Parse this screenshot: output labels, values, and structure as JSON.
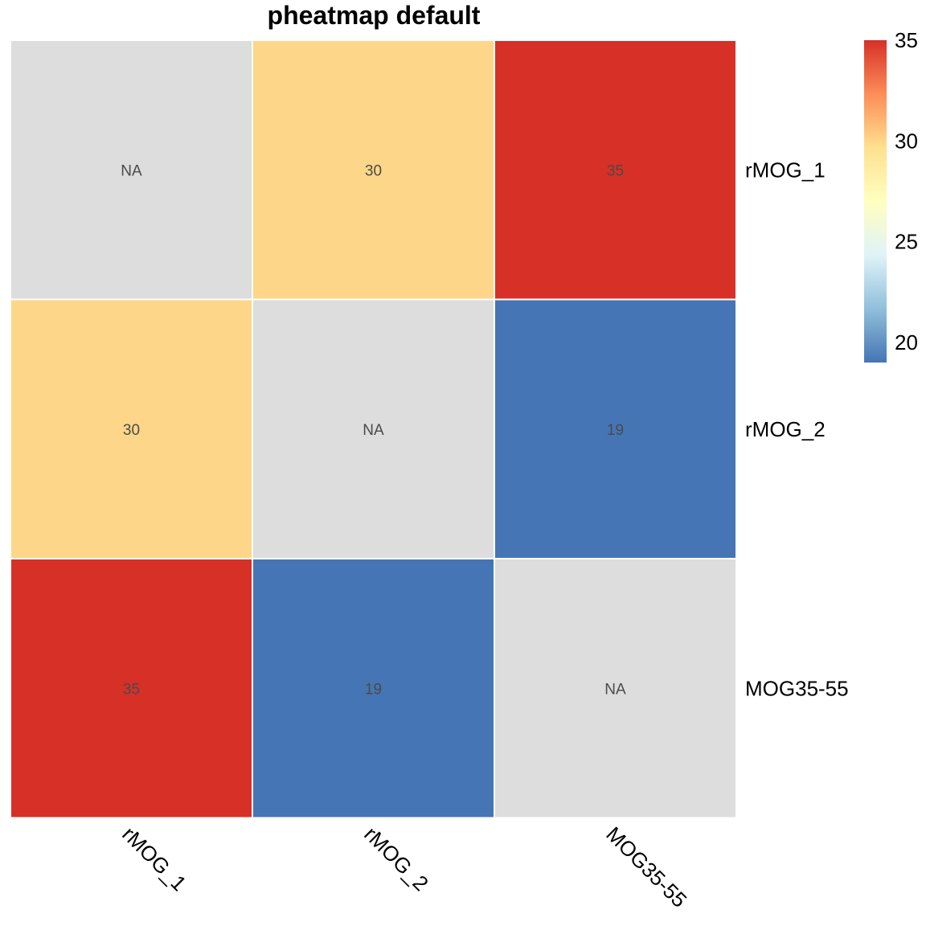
{
  "chart_data": {
    "type": "heatmap",
    "title": "pheatmap default",
    "rows": [
      "rMOG_1",
      "rMOG_2",
      "MOG35-55"
    ],
    "columns": [
      "rMOG_1",
      "rMOG_2",
      "MOG35-55"
    ],
    "values": [
      [
        null,
        30,
        35
      ],
      [
        30,
        null,
        19
      ],
      [
        35,
        19,
        null
      ]
    ],
    "cell_labels": [
      [
        "NA",
        "30",
        "35"
      ],
      [
        "30",
        "NA",
        "19"
      ],
      [
        "35",
        "19",
        "NA"
      ]
    ],
    "na_color": "#DDDDDD",
    "color_scale": {
      "min": 19,
      "max": 35,
      "colors": [
        "#4575B4",
        "#91BFDB",
        "#E0F3F8",
        "#FFFFBF",
        "#FEE090",
        "#FC8D59",
        "#D73027"
      ]
    },
    "legend": {
      "position": "top-right",
      "ticks": [
        35,
        30,
        25,
        20
      ]
    },
    "grid": false,
    "cell_border_color": "#FFFFFF"
  }
}
